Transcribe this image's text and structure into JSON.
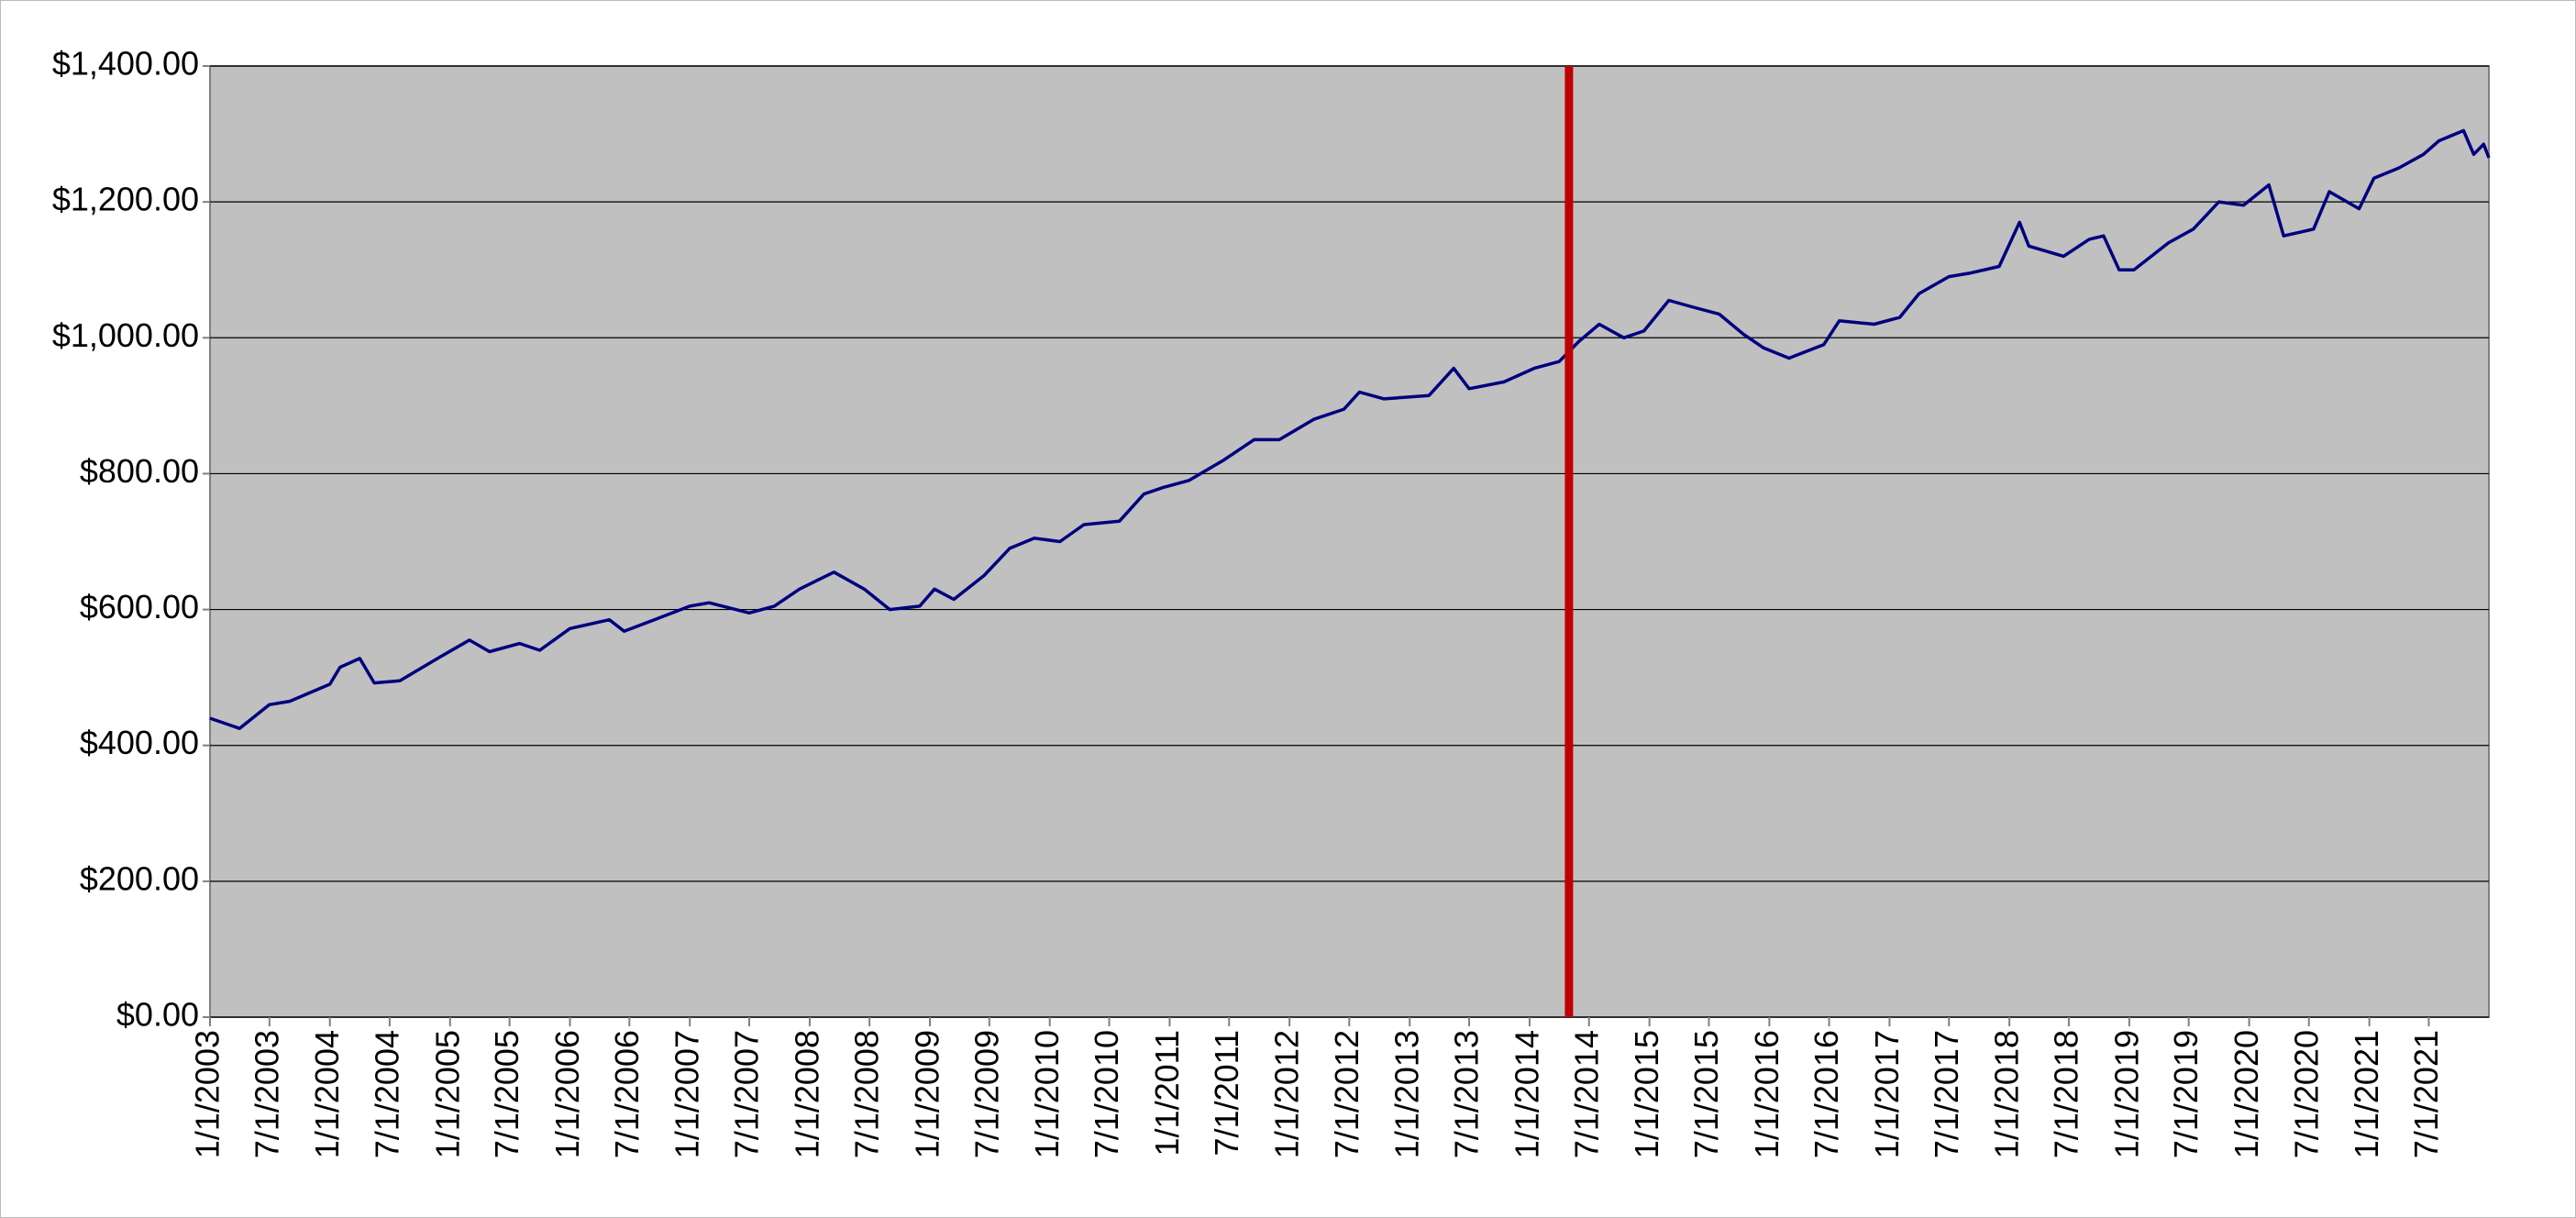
{
  "chart_data": {
    "type": "line",
    "x": [
      "1/1/2003",
      "4/1/2003",
      "7/1/2003",
      "9/1/2003",
      "1/1/2004",
      "2/1/2004",
      "4/1/2004",
      "5/15/2004",
      "8/1/2004",
      "12/1/2004",
      "3/1/2005",
      "5/1/2005",
      "8/1/2005",
      "10/1/2005",
      "1/1/2006",
      "5/1/2006",
      "6/15/2006",
      "9/15/2006",
      "1/1/2007",
      "3/1/2007",
      "7/1/2007",
      "9/15/2007",
      "12/1/2007",
      "3/15/2008",
      "6/15/2008",
      "9/1/2008",
      "12/1/2008",
      "1/15/2009",
      "3/15/2009",
      "6/15/2009",
      "9/1/2009",
      "11/15/2009",
      "2/1/2010",
      "4/15/2010",
      "8/1/2010",
      "10/15/2010",
      "12/15/2010",
      "3/1/2011",
      "6/15/2011",
      "9/15/2011",
      "12/1/2011",
      "3/15/2012",
      "6/15/2012",
      "8/1/2012",
      "10/15/2012",
      "3/1/2013",
      "5/15/2013",
      "7/1/2013",
      "10/15/2013",
      "1/15/2014",
      "4/1/2014",
      "6/1/2014",
      "8/1/2014",
      "10/15/2014",
      "12/15/2014",
      "3/1/2015",
      "5/15/2015",
      "8/1/2015",
      "10/15/2015",
      "12/15/2015",
      "3/1/2016",
      "6/15/2016",
      "8/1/2016",
      "11/15/2016",
      "2/1/2017",
      "4/1/2017",
      "7/1/2017",
      "9/1/2017",
      "12/1/2017",
      "2/1/2018",
      "3/1/2018",
      "6/15/2018",
      "9/1/2018",
      "10/15/2018",
      "12/1/2018",
      "1/15/2019",
      "5/1/2019",
      "7/15/2019",
      "10/1/2019",
      "12/15/2019",
      "3/1/2020",
      "4/15/2020",
      "7/15/2020",
      "9/1/2020",
      "12/1/2020",
      "1/15/2021",
      "4/1/2021",
      "6/15/2021",
      "8/1/2021",
      "10/15/2021",
      "11/15/2021",
      "12/15/2021",
      "12/31/2021"
    ],
    "series": [
      {
        "color": "#000080",
        "values": [
          440,
          425,
          460,
          465,
          490,
          515,
          528,
          492,
          495,
          530,
          555,
          538,
          550,
          540,
          572,
          585,
          568,
          585,
          605,
          610,
          595,
          605,
          630,
          655,
          630,
          600,
          605,
          630,
          615,
          650,
          690,
          705,
          700,
          725,
          730,
          770,
          780,
          790,
          820,
          850,
          850,
          880,
          895,
          920,
          910,
          915,
          955,
          925,
          935,
          955,
          965,
          995,
          1020,
          1000,
          1010,
          1055,
          1045,
          1035,
          1005,
          985,
          970,
          990,
          1025,
          1020,
          1030,
          1065,
          1090,
          1095,
          1105,
          1170,
          1135,
          1120,
          1145,
          1150,
          1100,
          1100,
          1140,
          1160,
          1200,
          1195,
          1225,
          1150,
          1160,
          1215,
          1190,
          1235,
          1250,
          1270,
          1290,
          1305,
          1270,
          1285,
          1265
        ]
      }
    ],
    "xlim": [
      "1/1/2003",
      "12/31/2021"
    ],
    "xticks": [
      "1/1/2003",
      "7/1/2003",
      "1/1/2004",
      "7/1/2004",
      "1/1/2005",
      "7/1/2005",
      "1/1/2006",
      "7/1/2006",
      "1/1/2007",
      "7/1/2007",
      "1/1/2008",
      "7/1/2008",
      "1/1/2009",
      "7/1/2009",
      "1/1/2010",
      "7/1/2010",
      "1/1/2011",
      "7/1/2011",
      "1/1/2012",
      "7/1/2012",
      "1/1/2013",
      "7/1/2013",
      "1/1/2014",
      "7/1/2014",
      "1/1/2015",
      "7/1/2015",
      "1/1/2016",
      "7/1/2016",
      "1/1/2017",
      "7/1/2017",
      "1/1/2018",
      "7/1/2018",
      "1/1/2019",
      "7/1/2019",
      "1/1/2020",
      "7/1/2020",
      "1/1/2021",
      "7/1/2021"
    ],
    "ylim": [
      0,
      1400
    ],
    "yticks": [
      {
        "value": 0,
        "label": "$0.00"
      },
      {
        "value": 200,
        "label": "$200.00"
      },
      {
        "value": 400,
        "label": "$400.00"
      },
      {
        "value": 600,
        "label": "$600.00"
      },
      {
        "value": 800,
        "label": "$800.00"
      },
      {
        "value": 1000,
        "label": "$1,000.00"
      },
      {
        "value": 1200,
        "label": "$1,200.00"
      },
      {
        "value": 1400,
        "label": "$1,400.00"
      }
    ],
    "grid": true,
    "vline": {
      "x": "5/1/2014",
      "color": "#c00000"
    }
  }
}
